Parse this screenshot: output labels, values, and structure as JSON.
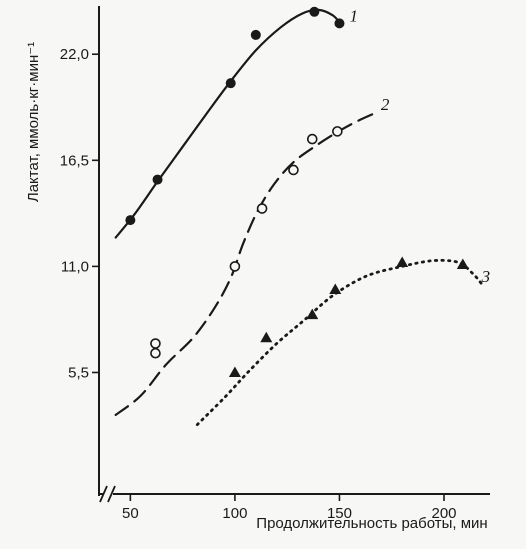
{
  "chart_data": {
    "type": "line",
    "title": "",
    "xlabel": "Продолжительность работы, мин",
    "ylabel": "Лактат, ммоль·кг·мин⁻¹",
    "xlim": [
      35,
      222
    ],
    "ylim": [
      -0.8,
      24.5
    ],
    "x_ticks": [
      50,
      100,
      150,
      200
    ],
    "x_tick_labels": [
      "50",
      "100",
      "150",
      "200"
    ],
    "y_ticks": [
      5.5,
      11.0,
      16.5,
      22.0
    ],
    "y_tick_labels": [
      "5,5",
      "11,0",
      "16,5",
      "22,0"
    ],
    "axis_break": "x-axis near origin",
    "grid": false,
    "series": [
      {
        "name": "1",
        "line_style": "solid",
        "marker": "filled-circle",
        "points": [
          [
            50,
            13.4
          ],
          [
            63,
            15.5
          ],
          [
            98,
            20.5
          ],
          [
            110,
            23.0
          ],
          [
            138,
            24.2
          ],
          [
            150,
            23.6
          ]
        ],
        "curve": [
          [
            43,
            12.5
          ],
          [
            52,
            13.7
          ],
          [
            63,
            15.4
          ],
          [
            75,
            17.2
          ],
          [
            87,
            19.0
          ],
          [
            98,
            20.6
          ],
          [
            110,
            22.2
          ],
          [
            122,
            23.4
          ],
          [
            132,
            24.1
          ],
          [
            140,
            24.3
          ],
          [
            147,
            24.0
          ],
          [
            151,
            23.5
          ]
        ]
      },
      {
        "name": "2",
        "line_style": "dashed",
        "marker": "open-circle",
        "points": [
          [
            62,
            7.0
          ],
          [
            62,
            6.5
          ],
          [
            100,
            11.0
          ],
          [
            113,
            14.0
          ],
          [
            128,
            16.0
          ],
          [
            137,
            17.6
          ],
          [
            149,
            18.0
          ]
        ],
        "curve": [
          [
            43,
            3.3
          ],
          [
            55,
            4.3
          ],
          [
            67,
            5.9
          ],
          [
            80,
            7.3
          ],
          [
            90,
            8.8
          ],
          [
            98,
            10.4
          ],
          [
            104,
            12.2
          ],
          [
            111,
            13.9
          ],
          [
            119,
            15.3
          ],
          [
            128,
            16.4
          ],
          [
            138,
            17.2
          ],
          [
            148,
            17.9
          ],
          [
            158,
            18.5
          ],
          [
            166,
            18.9
          ]
        ]
      },
      {
        "name": "3",
        "line_style": "dotted",
        "marker": "filled-triangle",
        "points": [
          [
            100,
            5.5
          ],
          [
            115,
            7.3
          ],
          [
            137,
            8.5
          ],
          [
            148,
            9.8
          ],
          [
            180,
            11.2
          ],
          [
            209,
            11.1
          ]
        ],
        "curve": [
          [
            82,
            2.8
          ],
          [
            95,
            4.2
          ],
          [
            107,
            5.6
          ],
          [
            120,
            7.0
          ],
          [
            133,
            8.2
          ],
          [
            147,
            9.5
          ],
          [
            163,
            10.5
          ],
          [
            180,
            11.0
          ],
          [
            195,
            11.3
          ],
          [
            207,
            11.2
          ],
          [
            214,
            10.6
          ],
          [
            218,
            10.1
          ]
        ]
      }
    ]
  }
}
